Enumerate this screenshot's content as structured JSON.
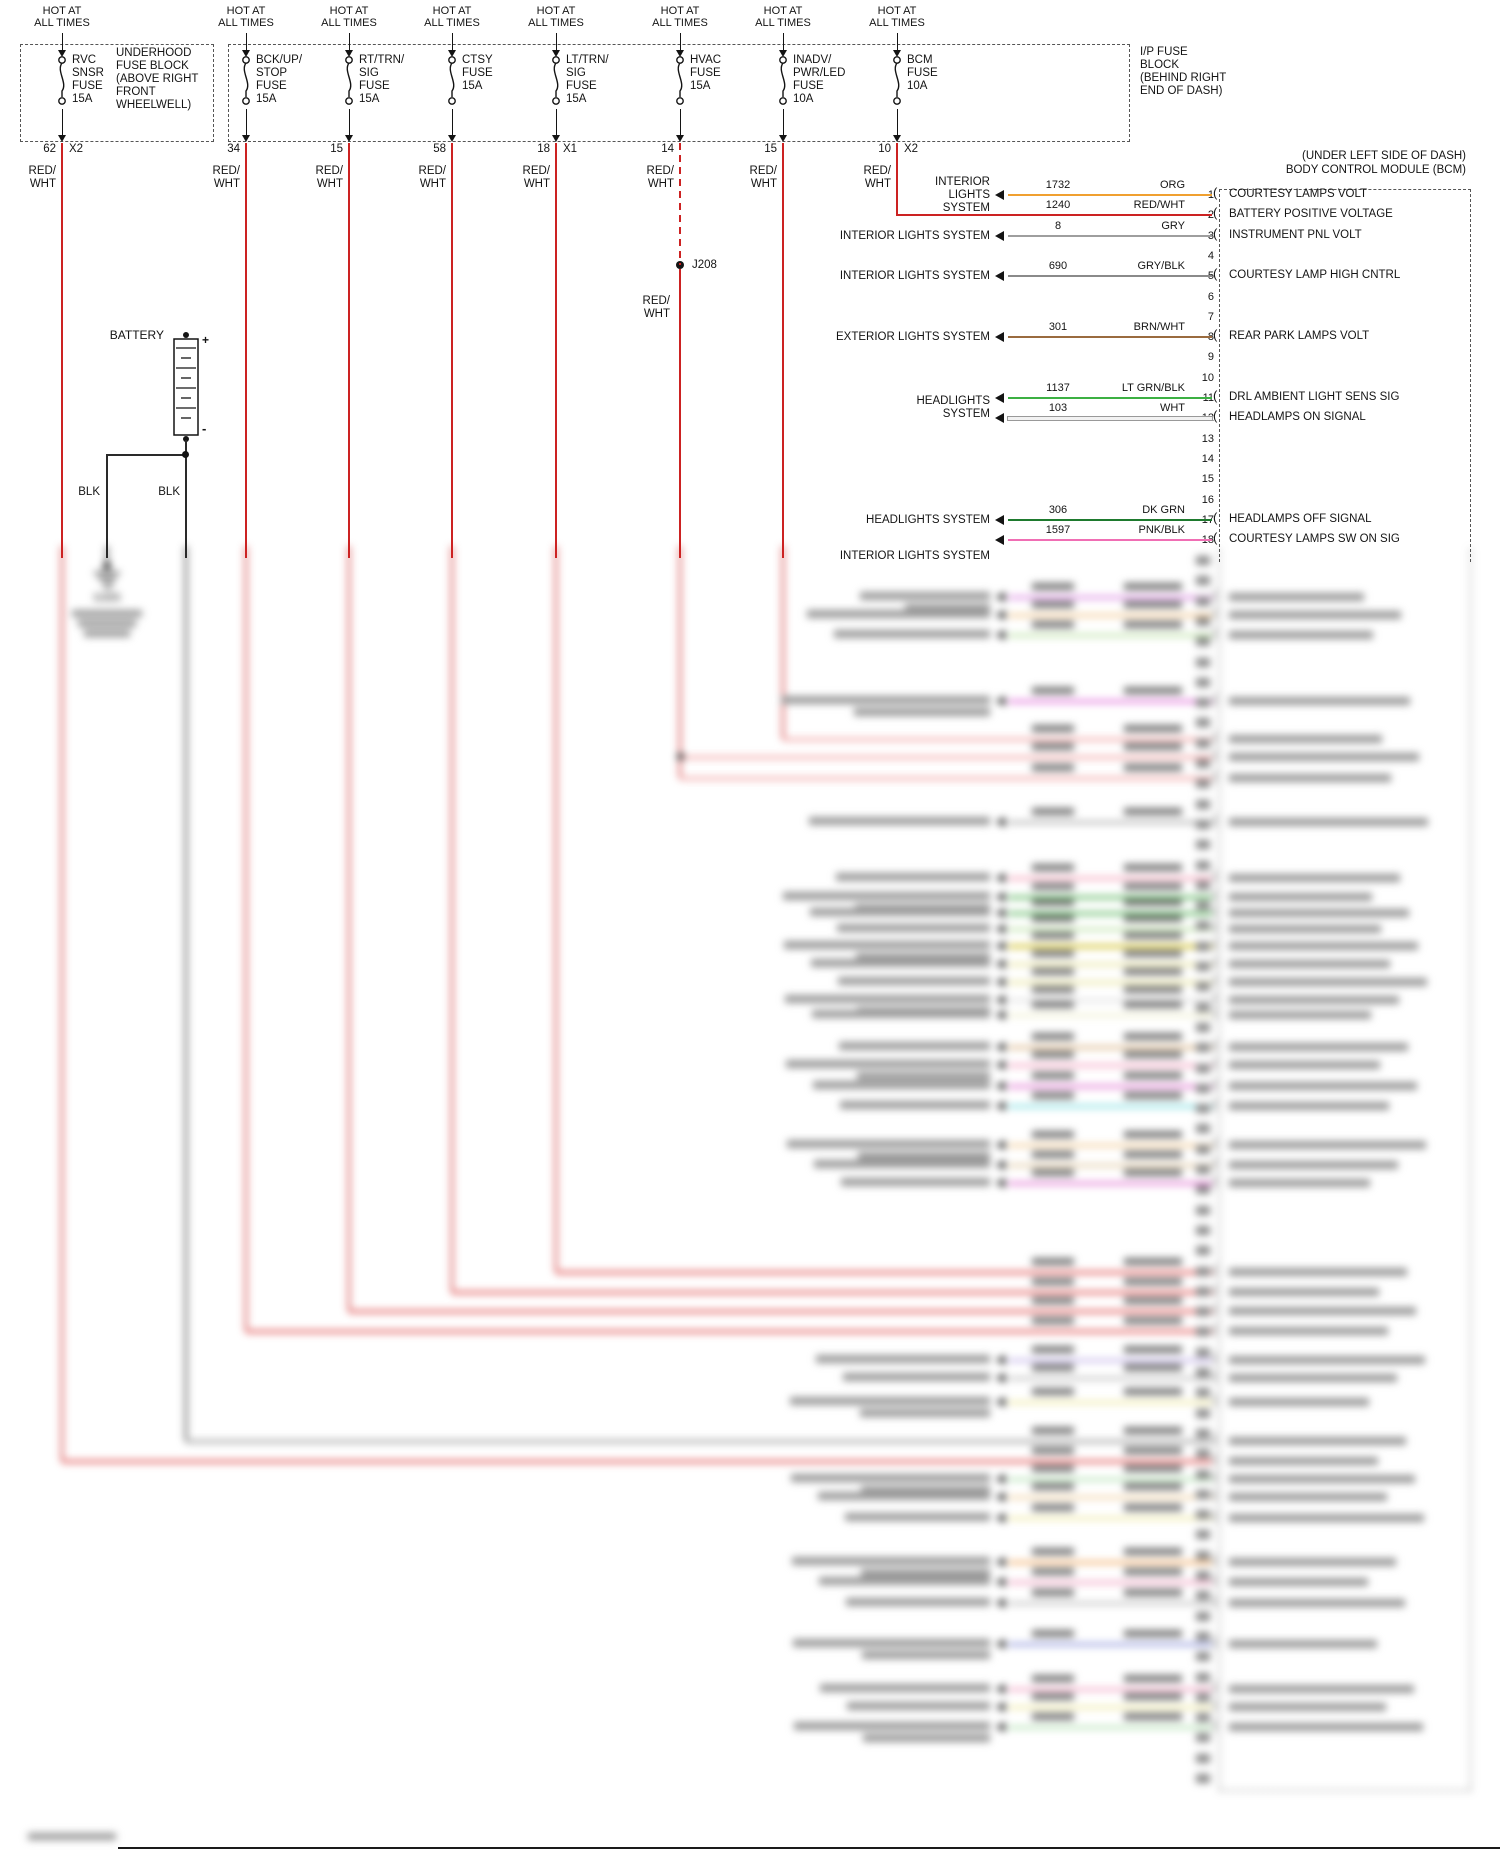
{
  "fuse_row": {
    "hot_label_lines": [
      "HOT AT",
      "ALL TIMES"
    ],
    "wire_label_lines": [
      "RED/",
      "WHT"
    ],
    "fuses": [
      {
        "name_lines": [
          "RVC",
          "SNSR",
          "FUSE",
          "15A"
        ],
        "pin": "62",
        "connector": "X2"
      },
      {
        "name_lines": [
          "BCK/UP/",
          "STOP",
          "FUSE",
          "15A"
        ],
        "pin": "34"
      },
      {
        "name_lines": [
          "RT/TRN/",
          "SIG",
          "FUSE",
          "15A"
        ],
        "pin": "15"
      },
      {
        "name_lines": [
          "CTSY",
          "FUSE",
          "15A"
        ],
        "pin": "58"
      },
      {
        "name_lines": [
          "LT/TRN/",
          "SIG",
          "FUSE",
          "15A"
        ],
        "pin": "18",
        "connector": "X1"
      },
      {
        "name_lines": [
          "HVAC",
          "FUSE",
          "15A"
        ],
        "pin": "14"
      },
      {
        "name_lines": [
          "INADV/",
          "PWR/LED",
          "FUSE",
          "10A"
        ],
        "pin": "15"
      },
      {
        "name_lines": [
          "BCM",
          "FUSE",
          "10A"
        ],
        "pin": "10",
        "connector": "X2"
      }
    ],
    "underhood_block_label_lines": [
      "UNDERHOOD",
      "FUSE BLOCK",
      "(ABOVE RIGHT",
      "FRONT",
      "WHEELWELL)"
    ],
    "ip_block_label_lines": [
      "I/P FUSE",
      "BLOCK",
      "(BEHIND RIGHT",
      "END OF DASH)"
    ]
  },
  "splice": {
    "label": "J208",
    "wire_label_lines": [
      "RED/",
      "WHT"
    ]
  },
  "battery": {
    "label": "BATTERY",
    "plus_sign": "+",
    "minus_sign": "-",
    "left_wire_label": "BLK",
    "right_wire_label": "BLK"
  },
  "ground": {
    "label": "G305"
  },
  "bcm": {
    "location_line1": "(UNDER LEFT SIDE OF DASH)",
    "location_line2": "BODY CONTROL MODULE (BCM)",
    "cavity_glyph": "(",
    "pin_numbers": [
      "1",
      "2",
      "3",
      "4",
      "5",
      "6",
      "7",
      "8",
      "9",
      "10",
      "11",
      "12",
      "13",
      "14",
      "15",
      "16",
      "17",
      "18"
    ],
    "shared_headlights_label_lines": [
      "HEADLIGHTS",
      "SYSTEM"
    ],
    "rows": [
      {
        "pin": "1",
        "circuit": "1732",
        "color": "ORG",
        "color_hex": "#f0a030",
        "arrow": true,
        "left_label_lines": [
          "INTERIOR",
          "LIGHTS",
          "SYSTEM"
        ],
        "bcm_label": "COURTESY LAMPS VOLT"
      },
      {
        "pin": "2",
        "circuit": "1240",
        "color": "RED/WHT",
        "color_hex": "#cc2222",
        "arrow": false,
        "left_label_lines": [],
        "bcm_label": "BATTERY POSITIVE VOLTAGE"
      },
      {
        "pin": "3",
        "circuit": "8",
        "color": "GRY",
        "color_hex": "#9e9e9e",
        "arrow": true,
        "left_label_lines": [
          "INTERIOR LIGHTS SYSTEM"
        ],
        "bcm_label": "INSTRUMENT PNL VOLT"
      },
      {
        "pin": "5",
        "circuit": "690",
        "color": "GRY/BLK",
        "color_hex": "#8a8a8a",
        "arrow": true,
        "left_label_lines": [
          "INTERIOR LIGHTS SYSTEM"
        ],
        "bcm_label": "COURTESY LAMP HIGH CNTRL"
      },
      {
        "pin": "8",
        "circuit": "301",
        "color": "BRN/WHT",
        "color_hex": "#9a6b3f",
        "arrow": true,
        "left_label_lines": [
          "EXTERIOR LIGHTS SYSTEM"
        ],
        "bcm_label": "REAR PARK LAMPS VOLT"
      },
      {
        "pin": "11",
        "circuit": "1137",
        "color": "LT GRN/BLK",
        "color_hex": "#3cb043",
        "arrow": true,
        "left_label_lines": [],
        "bcm_label": "DRL AMBIENT LIGHT SENS SIG"
      },
      {
        "pin": "12",
        "circuit": "103",
        "color": "WHT",
        "color_hex": "#f2f2f2",
        "arrow": true,
        "left_label_lines": [],
        "bcm_label": "HEADLAMPS ON SIGNAL"
      },
      {
        "pin": "17",
        "circuit": "306",
        "color": "DK GRN",
        "color_hex": "#1e7a2e",
        "arrow": true,
        "left_label_lines": [
          "HEADLIGHTS SYSTEM"
        ],
        "bcm_label": "HEADLAMPS OFF SIGNAL"
      },
      {
        "pin": "18",
        "circuit": "1597",
        "color": "PNK/BLK",
        "color_hex": "#f06eb4",
        "arrow": true,
        "left_label_lines": [
          "INTERIOR LIGHTS SYSTEM"
        ],
        "bcm_label": "COURTESY LAMPS SW ON SIG"
      }
    ]
  },
  "colors": {
    "power_wire_hex": "#cc2222",
    "ground_wire_hex": "#2a2a2a",
    "line_hex": "#141414"
  }
}
